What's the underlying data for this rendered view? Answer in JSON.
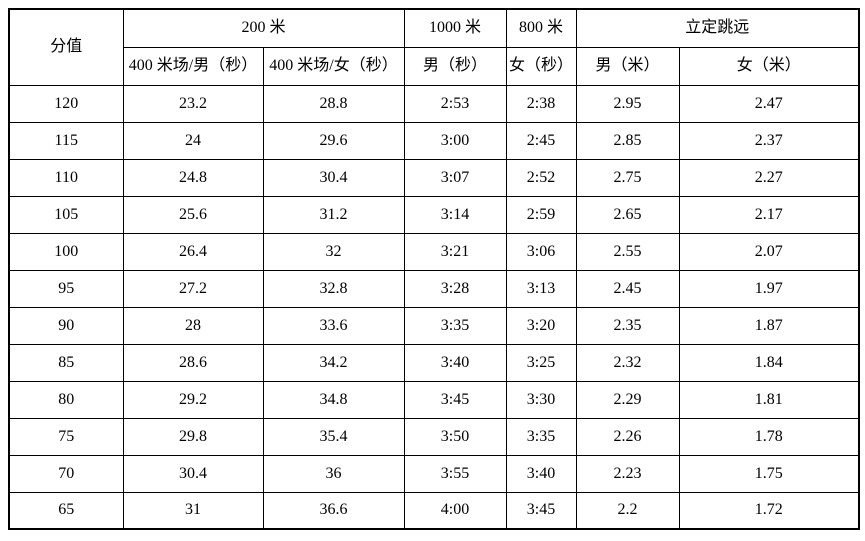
{
  "table": {
    "header": {
      "score": "分值",
      "group_200m": "200 米",
      "col_400m_male": "400 米场/男（秒）",
      "col_400m_female": "400 米场/女（秒）",
      "group_1000m": "1000 米",
      "col_1000m_male": "男（秒）",
      "group_800m": "800 米",
      "col_800m_female": "女（秒）",
      "group_standing_jump": "立定跳远",
      "col_jump_male": "男（米）",
      "col_jump_female": "女（米）"
    },
    "rows": [
      [
        "120",
        "23.2",
        "28.8",
        "2:53",
        "2:38",
        "2.95",
        "2.47"
      ],
      [
        "115",
        "24",
        "29.6",
        "3:00",
        "2:45",
        "2.85",
        "2.37"
      ],
      [
        "110",
        "24.8",
        "30.4",
        "3:07",
        "2:52",
        "2.75",
        "2.27"
      ],
      [
        "105",
        "25.6",
        "31.2",
        "3:14",
        "2:59",
        "2.65",
        "2.17"
      ],
      [
        "100",
        "26.4",
        "32",
        "3:21",
        "3:06",
        "2.55",
        "2.07"
      ],
      [
        "95",
        "27.2",
        "32.8",
        "3:28",
        "3:13",
        "2.45",
        "1.97"
      ],
      [
        "90",
        "28",
        "33.6",
        "3:35",
        "3:20",
        "2.35",
        "1.87"
      ],
      [
        "85",
        "28.6",
        "34.2",
        "3:40",
        "3:25",
        "2.32",
        "1.84"
      ],
      [
        "80",
        "29.2",
        "34.8",
        "3:45",
        "3:30",
        "2.29",
        "1.81"
      ],
      [
        "75",
        "29.8",
        "35.4",
        "3:50",
        "3:35",
        "2.26",
        "1.78"
      ],
      [
        "70",
        "30.4",
        "36",
        "3:55",
        "3:40",
        "2.23",
        "1.75"
      ],
      [
        "65",
        "31",
        "36.6",
        "4:00",
        "3:45",
        "2.2",
        "1.72"
      ]
    ],
    "colors": {
      "border": "#000000",
      "text": "#000000",
      "background": "#ffffff"
    }
  }
}
